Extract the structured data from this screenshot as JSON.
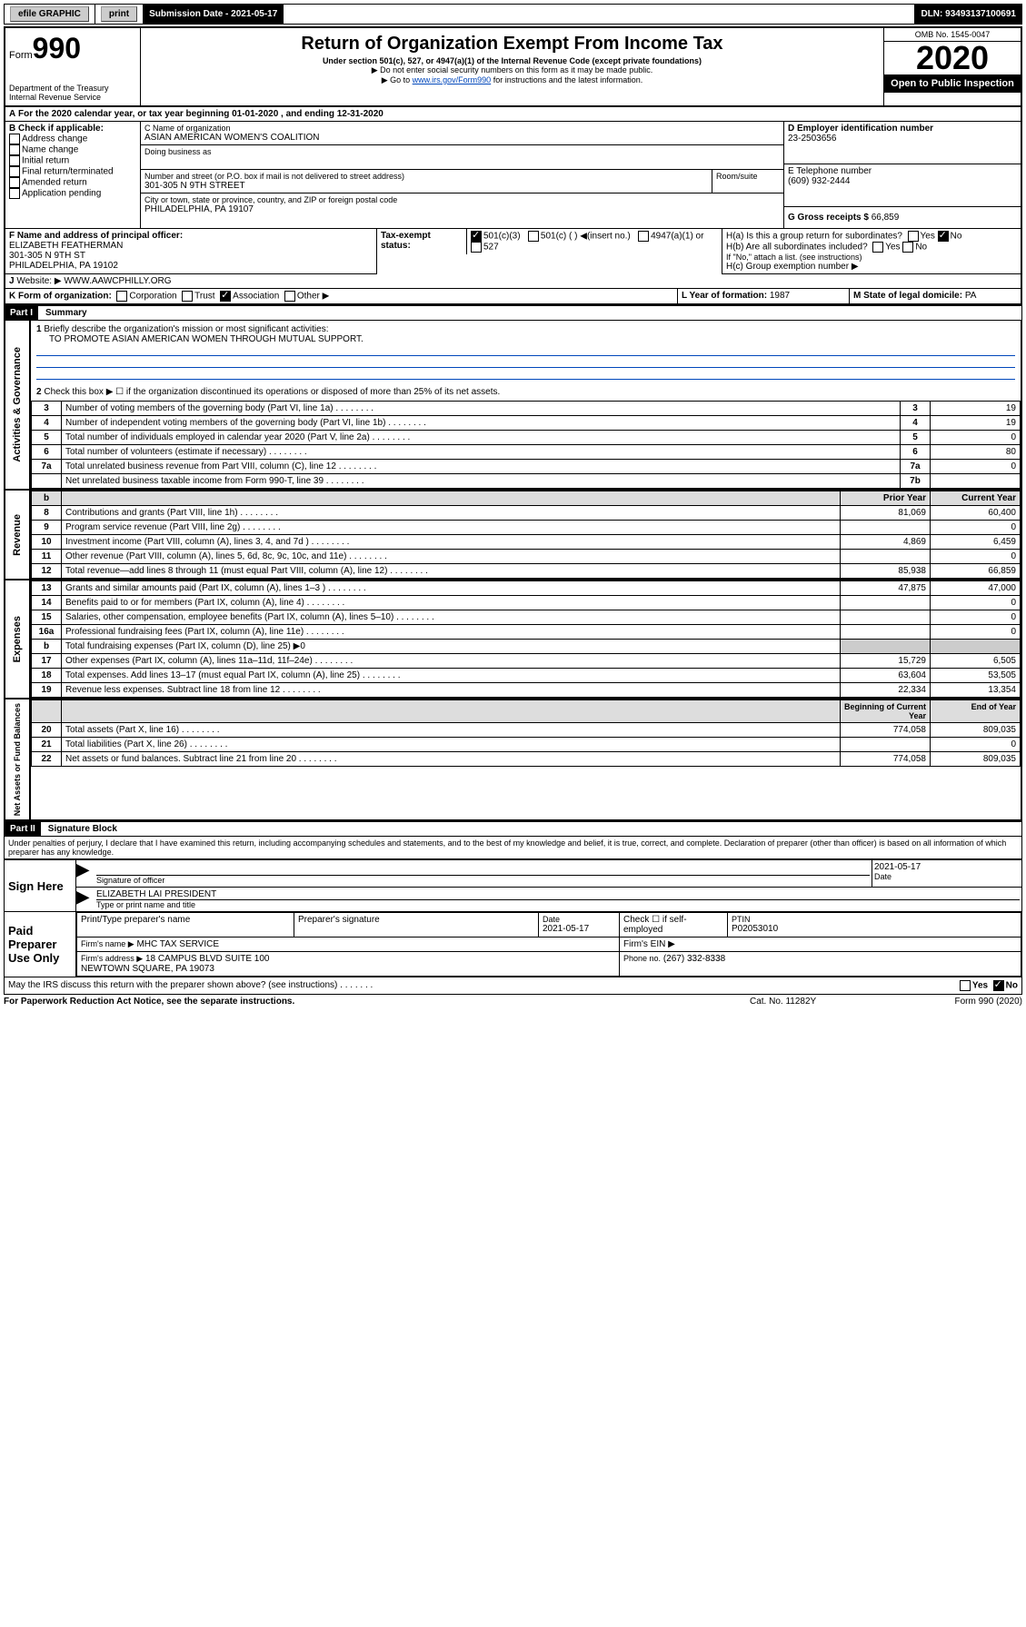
{
  "topbar": {
    "efile": "efile GRAPHIC",
    "print": "print",
    "sub_label": "Submission Date - 2021-05-17",
    "dln": "DLN: 93493137100691"
  },
  "header": {
    "form": "Form",
    "no": "990",
    "title": "Return of Organization Exempt From Income Tax",
    "sub1": "Under section 501(c), 527, or 4947(a)(1) of the Internal Revenue Code (except private foundations)",
    "sub2": "▶ Do not enter social security numbers on this form as it may be made public.",
    "sub3": "▶ Go to ",
    "sub3_link": "www.irs.gov/Form990",
    "sub3_tail": " for instructions and the latest information.",
    "dept": "Department of the Treasury\nInternal Revenue Service",
    "omb": "OMB No. 1545-0047",
    "year": "2020",
    "open": "Open to Public Inspection"
  },
  "A": {
    "text": "For the 2020 calendar year, or tax year beginning 01-01-2020    , and ending 12-31-2020"
  },
  "B": {
    "label": "B Check if applicable:",
    "items": [
      "Address change",
      "Name change",
      "Initial return",
      "Final return/terminated",
      "Amended return",
      "Application pending"
    ]
  },
  "C": {
    "name_lbl": "C Name of organization",
    "name": "ASIAN AMERICAN WOMEN'S COALITION",
    "dba": "Doing business as",
    "addr_lbl": "Number and street (or P.O. box if mail is not delivered to street address)",
    "room": "Room/suite",
    "addr": "301-305 N 9TH STREET",
    "city_lbl": "City or town, state or province, country, and ZIP or foreign postal code",
    "city": "PHILADELPHIA, PA  19107"
  },
  "D": {
    "lbl": "D Employer identification number",
    "val": "23-2503656"
  },
  "E": {
    "lbl": "E Telephone number",
    "val": "(609) 932-2444"
  },
  "G": {
    "lbl": "G Gross receipts $",
    "val": "66,859"
  },
  "F": {
    "lbl": "F  Name and address of principal officer:",
    "name": "ELIZABETH FEATHERMAN",
    "addr": "301-305 N 9TH ST\nPHILADELPHIA, PA  19102"
  },
  "H": {
    "a": "H(a)  Is this a group return for subordinates?",
    "a_no": "No",
    "b": "H(b)  Are all subordinates included?",
    "b_note": "If \"No,\" attach a list. (see instructions)",
    "c": "H(c)  Group exemption number ▶"
  },
  "I": {
    "lbl": "Tax-exempt status:",
    "opts": [
      "501(c)(3)",
      "501(c) (  ) ◀(insert no.)",
      "4947(a)(1) or",
      "527"
    ]
  },
  "J": {
    "lbl": "Website: ▶",
    "val": "WWW.AAWCPHILLY.ORG"
  },
  "K": {
    "lbl": "K Form of organization:",
    "opts": [
      "Corporation",
      "Trust",
      "Association",
      "Other ▶"
    ]
  },
  "L": {
    "lbl": "L Year of formation:",
    "val": "1987"
  },
  "M": {
    "lbl": "M State of legal domicile:",
    "val": "PA"
  },
  "partI": {
    "hdr": "Part I",
    "title": "Summary"
  },
  "summary": {
    "l1": "Briefly describe the organization's mission or most significant activities:",
    "l1val": "TO PROMOTE ASIAN AMERICAN WOMEN THROUGH MUTUAL SUPPORT.",
    "l2": "Check this box ▶ ☐  if the organization discontinued its operations or disposed of more than 25% of its net assets."
  },
  "gov_rows": [
    {
      "n": "3",
      "t": "Number of voting members of the governing body (Part VI, line 1a)",
      "b": "3",
      "v": "19"
    },
    {
      "n": "4",
      "t": "Number of independent voting members of the governing body (Part VI, line 1b)",
      "b": "4",
      "v": "19"
    },
    {
      "n": "5",
      "t": "Total number of individuals employed in calendar year 2020 (Part V, line 2a)",
      "b": "5",
      "v": "0"
    },
    {
      "n": "6",
      "t": "Total number of volunteers (estimate if necessary)",
      "b": "6",
      "v": "80"
    },
    {
      "n": "7a",
      "t": "Total unrelated business revenue from Part VIII, column (C), line 12",
      "b": "7a",
      "v": "0"
    },
    {
      "n": "",
      "t": "Net unrelated business taxable income from Form 990-T, line 39",
      "b": "7b",
      "v": ""
    }
  ],
  "rev_hdr": {
    "b": "b",
    "py": "Prior Year",
    "cy": "Current Year"
  },
  "rev_rows": [
    {
      "n": "8",
      "t": "Contributions and grants (Part VIII, line 1h)",
      "py": "81,069",
      "cy": "60,400"
    },
    {
      "n": "9",
      "t": "Program service revenue (Part VIII, line 2g)",
      "py": "",
      "cy": "0"
    },
    {
      "n": "10",
      "t": "Investment income (Part VIII, column (A), lines 3, 4, and 7d )",
      "py": "4,869",
      "cy": "6,459"
    },
    {
      "n": "11",
      "t": "Other revenue (Part VIII, column (A), lines 5, 6d, 8c, 9c, 10c, and 11e)",
      "py": "",
      "cy": "0"
    },
    {
      "n": "12",
      "t": "Total revenue—add lines 8 through 11 (must equal Part VIII, column (A), line 12)",
      "py": "85,938",
      "cy": "66,859"
    }
  ],
  "exp_rows": [
    {
      "n": "13",
      "t": "Grants and similar amounts paid (Part IX, column (A), lines 1–3 )",
      "py": "47,875",
      "cy": "47,000"
    },
    {
      "n": "14",
      "t": "Benefits paid to or for members (Part IX, column (A), line 4)",
      "py": "",
      "cy": "0"
    },
    {
      "n": "15",
      "t": "Salaries, other compensation, employee benefits (Part IX, column (A), lines 5–10)",
      "py": "",
      "cy": "0"
    },
    {
      "n": "16a",
      "t": "Professional fundraising fees (Part IX, column (A), line 11e)",
      "py": "",
      "cy": "0"
    },
    {
      "n": "b",
      "t": "Total fundraising expenses (Part IX, column (D), line 25) ▶0",
      "py": "",
      "cy": ""
    },
    {
      "n": "17",
      "t": "Other expenses (Part IX, column (A), lines 11a–11d, 11f–24e)",
      "py": "15,729",
      "cy": "6,505"
    },
    {
      "n": "18",
      "t": "Total expenses. Add lines 13–17 (must equal Part IX, column (A), line 25)",
      "py": "63,604",
      "cy": "53,505"
    },
    {
      "n": "19",
      "t": "Revenue less expenses. Subtract line 18 from line 12",
      "py": "22,334",
      "cy": "13,354"
    }
  ],
  "net_hdr": {
    "py": "Beginning of Current Year",
    "cy": "End of Year"
  },
  "net_rows": [
    {
      "n": "20",
      "t": "Total assets (Part X, line 16)",
      "py": "774,058",
      "cy": "809,035"
    },
    {
      "n": "21",
      "t": "Total liabilities (Part X, line 26)",
      "py": "",
      "cy": "0"
    },
    {
      "n": "22",
      "t": "Net assets or fund balances. Subtract line 21 from line 20",
      "py": "774,058",
      "cy": "809,035"
    }
  ],
  "vlabels": {
    "gov": "Activities & Governance",
    "rev": "Revenue",
    "exp": "Expenses",
    "net": "Net Assets or Fund Balances"
  },
  "partII": {
    "hdr": "Part II",
    "title": "Signature Block",
    "decl": "Under penalties of perjury, I declare that I have examined this return, including accompanying schedules and statements, and to the best of my knowledge and belief, it is true, correct, and complete. Declaration of preparer (other than officer) is based on all information of which preparer has any knowledge."
  },
  "sign": {
    "lbl": "Sign Here",
    "sig": "Signature of officer",
    "date": "2021-05-17",
    "date_lbl": "Date",
    "name": "ELIZABETH LAI PRESIDENT",
    "name_lbl": "Type or print name and title"
  },
  "paid": {
    "lbl": "Paid Preparer Use Only",
    "h1": "Print/Type preparer's name",
    "h2": "Preparer's signature",
    "h3": "Date",
    "h4": "Check ☐ if self-employed",
    "h5": "PTIN",
    "date": "2021-05-17",
    "ptin": "P02053010",
    "firm_lbl": "Firm's name   ▶",
    "firm": "MHC TAX SERVICE",
    "ein_lbl": "Firm's EIN ▶",
    "addr_lbl": "Firm's address ▶",
    "addr": "18 CAMPUS BLVD SUITE 100\nNEWTOWN SQUARE, PA  19073",
    "phone_lbl": "Phone no.",
    "phone": "(267) 332-8338"
  },
  "footer": {
    "discuss": "May the IRS discuss this return with the preparer shown above? (see instructions)",
    "notice": "For Paperwork Reduction Act Notice, see the separate instructions.",
    "cat": "Cat. No. 11282Y",
    "form": "Form 990 (2020)"
  },
  "yn": {
    "yes": "Yes",
    "no": "No"
  }
}
